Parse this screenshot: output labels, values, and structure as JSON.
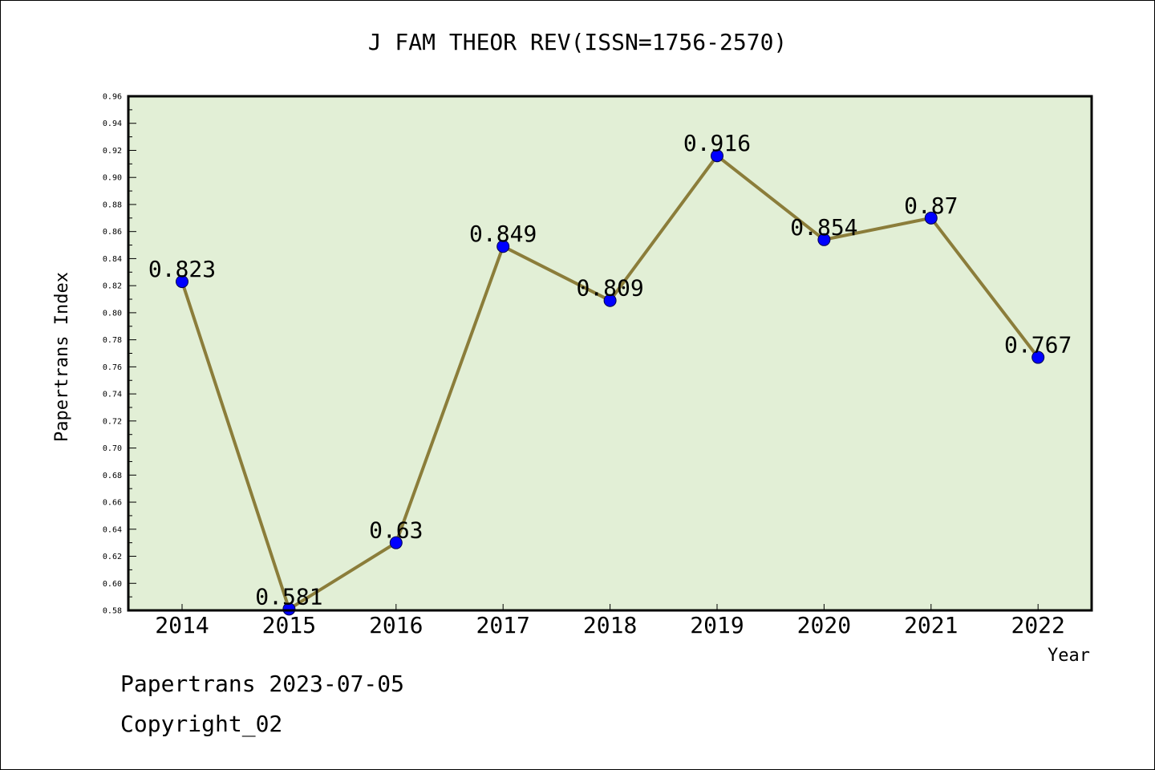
{
  "chart_data": {
    "type": "line",
    "title": "J FAM THEOR REV(ISSN=1756-2570)",
    "xlabel": "Year",
    "ylabel": "Papertrans Index",
    "categories": [
      "2014",
      "2015",
      "2016",
      "2017",
      "2018",
      "2019",
      "2020",
      "2021",
      "2022"
    ],
    "values": [
      0.823,
      0.581,
      0.63,
      0.849,
      0.809,
      0.916,
      0.854,
      0.87,
      0.767
    ],
    "value_labels": [
      "0.823",
      "0.581",
      "0.63",
      "0.849",
      "0.809",
      "0.916",
      "0.854",
      "0.87",
      "0.767"
    ],
    "ylim": [
      0.58,
      0.96
    ],
    "ytick_step": 0.02,
    "ytick_labels": [
      "0.58",
      "0.60",
      "0.62",
      "0.64",
      "0.66",
      "0.68",
      "0.70",
      "0.72",
      "0.74",
      "0.76",
      "0.78",
      "0.80",
      "0.82",
      "0.84",
      "0.86",
      "0.88",
      "0.90",
      "0.92",
      "0.94",
      "0.96"
    ],
    "grid": false,
    "legend": "none",
    "colors": {
      "plot_background": "#e2efd6",
      "line": "#8b7d3a",
      "marker": "#0000ff",
      "marker_edge": "#00004d",
      "axis": "#000000"
    }
  },
  "footer": {
    "line1": "Papertrans 2023-07-05",
    "line2": "Copyright_02"
  }
}
